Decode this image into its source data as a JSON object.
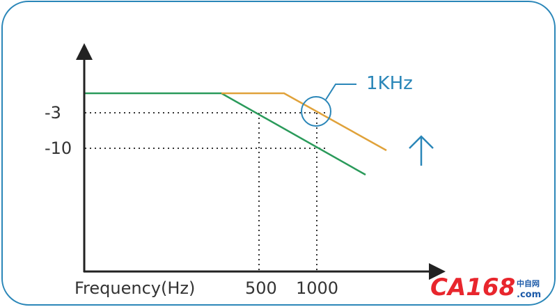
{
  "axes": {
    "x_label": "Frequency(Hz)",
    "y_ticks": [
      "-3",
      "-10"
    ],
    "x_ticks": [
      "500",
      "1000"
    ]
  },
  "annotation": {
    "label": "1KHz"
  },
  "colors": {
    "frame": "#2a86b8",
    "axis": "#222222",
    "green_curve": "#2a9a5a",
    "orange_curve": "#e0a23a",
    "guide": "#333333",
    "annotation": "#2a86b8"
  },
  "logo": {
    "main": "CA168",
    "chinese": "中自网",
    "domain": ".com"
  }
}
